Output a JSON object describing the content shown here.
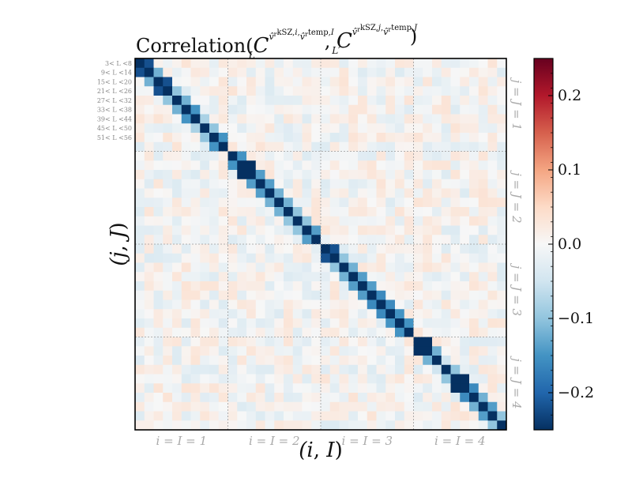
{
  "chart_data": {
    "type": "heatmap",
    "title": "Correlation(C_L^{v̂_r^{kSZ,i}, v̂_r^{temp,I}}, C_{L'}^{v̂_r^{kSZ,j}, v̂_r^{temp,J}})",
    "xlabel": "(i, I)",
    "ylabel": "(j, J)",
    "n_blocks": 4,
    "bins_per_block": 10,
    "row_tick_labels": [
      "3< L <8",
      "9< L <14",
      "15< L <20",
      "21< L <26",
      "27< L <32",
      "33< L <38",
      "39< L <44",
      "45< L <50",
      "51< L <56"
    ],
    "x_block_labels": [
      "i = I = 1",
      "i = I = 2",
      "i = I = 3",
      "i = I = 4"
    ],
    "y_block_labels": [
      "j = J = 1",
      "j = J = 2",
      "j = J = 3",
      "j = J = 4"
    ],
    "colorbar": {
      "vmin": -0.25,
      "vmax": 0.25,
      "ticks": [
        -0.2,
        -0.1,
        0.0,
        0.1,
        0.2
      ],
      "tick_labels": [
        "−0.2",
        "−0.1",
        "0.0",
        "0.1",
        "0.2"
      ],
      "colormap": "RdBu_r"
    },
    "diagonal_value": -0.25,
    "block_diagonals": [
      [
        -0.22,
        -0.12,
        -0.22,
        -0.1,
        -0.12,
        -0.15,
        -0.08,
        -0.1,
        -0.15,
        -0.1
      ],
      [
        -0.15,
        -0.25,
        -0.14,
        -0.14,
        -0.12,
        -0.12,
        -0.1,
        -0.1,
        -0.14,
        -0.12
      ],
      [
        -0.22,
        -0.1,
        -0.12,
        -0.14,
        -0.14,
        -0.16,
        -0.16,
        -0.15,
        -0.15,
        -0.16
      ],
      [
        -0.25,
        -0.12,
        -0.05,
        -0.1,
        -0.25,
        -0.16,
        -0.12,
        -0.14,
        -0.1,
        -0.12
      ]
    ],
    "grid": true
  }
}
